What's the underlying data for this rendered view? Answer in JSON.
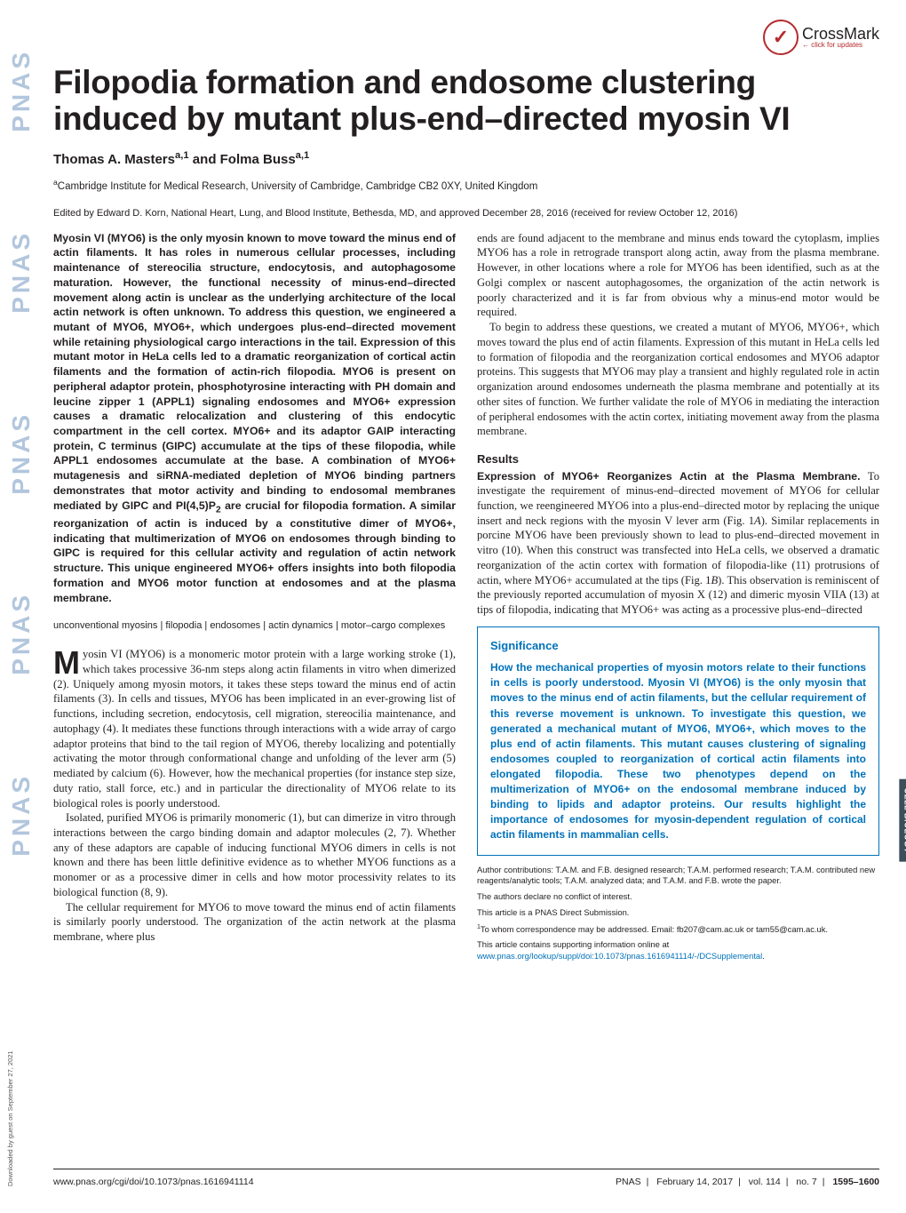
{
  "crossmark": {
    "label": "CrossMark",
    "sub": "← click for updates",
    "glyph": "✓"
  },
  "title": "Filopodia formation and endosome clustering induced by mutant plus-end–directed myosin VI",
  "authors": "Thomas A. Masters<sup>a,1</sup> and Folma Buss<sup>a,1</sup>",
  "affiliation": "<sup>a</sup>Cambridge Institute for Medical Research, University of Cambridge, Cambridge CB2 0XY, United Kingdom",
  "edited": "Edited by Edward D. Korn, National Heart, Lung, and Blood Institute, Bethesda, MD, and approved December 28, 2016 (received for review October 12, 2016)",
  "abstract": "Myosin VI (MYO6) is the only myosin known to move toward the minus end of actin filaments. It has roles in numerous cellular processes, including maintenance of stereocilia structure, endocytosis, and autophagosome maturation. However, the functional necessity of minus-end–directed movement along actin is unclear as the underlying architecture of the local actin network is often unknown. To address this question, we engineered a mutant of MYO6, MYO6+, which undergoes plus-end–directed movement while retaining physiological cargo interactions in the tail. Expression of this mutant motor in HeLa cells led to a dramatic reorganization of cortical actin filaments and the formation of actin-rich filopodia. MYO6 is present on peripheral adaptor protein, phosphotyrosine interacting with PH domain and leucine zipper 1 (APPL1) signaling endosomes and MYO6+ expression causes a dramatic relocalization and clustering of this endocytic compartment in the cell cortex. MYO6+ and its adaptor GAIP interacting protein, C terminus (GIPC) accumulate at the tips of these filopodia, while APPL1 endosomes accumulate at the base. A combination of MYO6+ mutagenesis and siRNA-mediated depletion of MYO6 binding partners demonstrates that motor activity and binding to endosomal membranes mediated by GIPC and PI(4,5)P<sub>2</sub> are crucial for filopodia formation. A similar reorganization of actin is induced by a constitutive dimer of MYO6+, indicating that multimerization of MYO6 on endosomes through binding to GIPC is required for this cellular activity and regulation of actin network structure. This unique engineered MYO6+ offers insights into both filopodia formation and MYO6 motor function at endosomes and at the plasma membrane.",
  "keywords": "unconventional myosins | filopodia | endosomes | actin dynamics | motor–cargo complexes",
  "dropcap": "M",
  "intro_first": "yosin VI (MYO6) is a monomeric motor protein with a large working stroke (1), which takes processive 36-nm steps along actin filaments in vitro when dimerized (2). Uniquely among myosin motors, it takes these steps toward the minus end of actin filaments (3). In cells and tissues, MYO6 has been implicated in an ever-growing list of functions, including secretion, endocytosis, cell migration, stereocilia maintenance, and autophagy (4). It mediates these functions through interactions with a wide array of cargo adaptor proteins that bind to the tail region of MYO6, thereby localizing and potentially activating the motor through conformational change and unfolding of the lever arm (5) mediated by calcium (6). However, how the mechanical properties (for instance step size, duty ratio, stall force, etc.) and in particular the directionality of MYO6 relate to its biological roles is poorly understood.",
  "intro_p2": "Isolated, purified MYO6 is primarily monomeric (1), but can dimerize in vitro through interactions between the cargo binding domain and adaptor molecules (2, 7). Whether any of these adaptors are capable of inducing functional MYO6 dimers in cells is not known and there has been little definitive evidence as to whether MYO6 functions as a monomer or as a processive dimer in cells and how motor processivity relates to its biological function (8, 9).",
  "intro_p3": "The cellular requirement for MYO6 to move toward the minus end of actin filaments is similarly poorly understood. The organization of the actin network at the plasma membrane, where plus",
  "col2_p1": "ends are found adjacent to the membrane and minus ends toward the cytoplasm, implies MYO6 has a role in retrograde transport along actin, away from the plasma membrane. However, in other locations where a role for MYO6 has been identified, such as at the Golgi complex or nascent autophagosomes, the organization of the actin network is poorly characterized and it is far from obvious why a minus-end motor would be required.",
  "col2_p2": "To begin to address these questions, we created a mutant of MYO6, MYO6+, which moves toward the plus end of actin filaments. Expression of this mutant in HeLa cells led to formation of filopodia and the reorganization cortical endosomes and MYO6 adaptor proteins. This suggests that MYO6 may play a transient and highly regulated role in actin organization around endosomes underneath the plasma membrane and potentially at its other sites of function. We further validate the role of MYO6 in mediating the interaction of peripheral endosomes with the actin cortex, initiating movement away from the plasma membrane.",
  "results_head": "Results",
  "results_run": "Expression of MYO6+ Reorganizes Actin at the Plasma Membrane.",
  "results_body": " To investigate the requirement of minus-end–directed movement of MYO6 for cellular function, we reengineered MYO6 into a plus-end–directed motor by replacing the unique insert and neck regions with the myosin V lever arm (Fig. 1<i>A</i>). Similar replacements in porcine MYO6 have been previously shown to lead to plus-end–directed movement in vitro (10). When this construct was transfected into HeLa cells, we observed a dramatic reorganization of the actin cortex with formation of filopodia-like (11) protrusions of actin, where MYO6+ accumulated at the tips (Fig. 1<i>B</i>). This observation is reminiscent of the previously reported accumulation of myosin X (12) and dimeric myosin VIIA (13) at tips of filopodia, indicating that MYO6+ was acting as a processive plus-end–directed",
  "significance_title": "Significance",
  "significance_body": "How the mechanical properties of myosin motors relate to their functions in cells is poorly understood. Myosin VI (MYO6) is the only myosin that moves to the minus end of actin filaments, but the cellular requirement of this reverse movement is unknown. To investigate this question, we generated a mechanical mutant of MYO6, MYO6+, which moves to the plus end of actin filaments. This mutant causes clustering of signaling endosomes coupled to reorganization of cortical actin filaments into elongated filopodia. These two phenotypes depend on the multimerization of MYO6+ on the endosomal membrane induced by binding to lipids and adaptor proteins. Our results highlight the importance of endosomes for myosin-dependent regulation of cortical actin filaments in mammalian cells.",
  "footnotes": {
    "contrib": "Author contributions: T.A.M. and F.B. designed research; T.A.M. performed research; T.A.M. contributed new reagents/analytic tools; T.A.M. analyzed data; and T.A.M. and F.B. wrote the paper.",
    "conflict": "The authors declare no conflict of interest.",
    "direct": "This article is a PNAS Direct Submission.",
    "corr": "<sup>1</sup>To whom correspondence may be addressed. Email: fb207@cam.ac.uk or tam55@cam.ac.uk.",
    "supp_pre": "This article contains supporting information online at ",
    "supp_link": "www.pnas.org/lookup/suppl/doi:10.1073/pnas.1616941114/-/DCSupplemental",
    "supp_post": "."
  },
  "footer": {
    "left": "www.pnas.org/cgi/doi/10.1073/pnas.1616941114",
    "journal": "PNAS",
    "date": "February 14, 2017",
    "vol": "vol. 114",
    "no": "no. 7",
    "pages": "1595–1600"
  },
  "pnas_word": "PNAS",
  "side_tab": "CELL BIOLOGY",
  "download_note": "Downloaded by guest on September 27, 2021",
  "colors": {
    "blue": "#0072ba",
    "red": "#b52a2d",
    "text": "#231f20",
    "strip": "#b2c6dd",
    "tab": "#3c4e5a"
  }
}
